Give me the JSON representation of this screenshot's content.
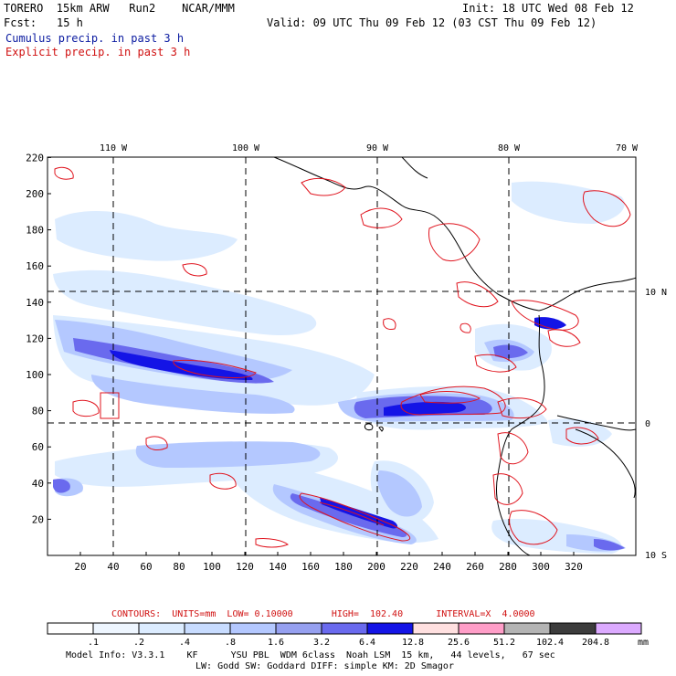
{
  "header": {
    "title_left": "TORERO  15km ARW   Run2    NCAR/MMM",
    "init": "Init: 18 UTC Wed 08 Feb 12",
    "fcst_label": "Fcst:",
    "fcst_value": "15 h",
    "valid": "Valid: 09 UTC Thu 09 Feb 12 (03 CST Thu 09 Feb 12)",
    "legend_cumulus": "Cumulus precip. in past 3 h",
    "legend_explicit": "Explicit precip. in past 3 h"
  },
  "map": {
    "lon_labels": [
      "110 W",
      "100 W",
      "90 W",
      "80 W",
      "70 W"
    ],
    "lat_labels": [
      "10 N",
      "0",
      "10 S"
    ],
    "y_ticks": [
      "220",
      "200",
      "180",
      "160",
      "140",
      "120",
      "100",
      "80",
      "60",
      "40",
      "20"
    ],
    "x_ticks": [
      "20",
      "40",
      "60",
      "80",
      "100",
      "120",
      "140",
      "160",
      "180",
      "200",
      "220",
      "240",
      "260",
      "280",
      "300",
      "320"
    ],
    "colors": {
      "explicit_contour": "#e0141e",
      "coast": "#000000",
      "grid": "#000000"
    }
  },
  "contours_line": {
    "label": "CONTOURS:  UNITS=mm  LOW= 0.10000       HIGH=  102.40      INTERVAL=X  4.0000"
  },
  "colorbar": {
    "labels": [
      ".1",
      ".2",
      ".4",
      ".8",
      "1.6",
      "3.2",
      "6.4",
      "12.8",
      "25.6",
      "51.2",
      "102.4",
      "204.8"
    ],
    "unit": "mm",
    "colors": [
      "#ffffff",
      "#eef6ff",
      "#dcecff",
      "#c8dcff",
      "#b4c8ff",
      "#96a0f0",
      "#6a6aee",
      "#1414e6",
      "#ffe0e0",
      "#ff9ec8",
      "#b4b4b4",
      "#3c3c3c",
      "#dcaaff"
    ]
  },
  "footer": {
    "line1": "Model Info: V3.3.1    KF      YSU PBL  WDM 6class  Noah LSM  15 km,   44 levels,   67 sec",
    "line2": "LW: Godd SW: Goddard DIFF: simple KM: 2D Smagor"
  }
}
